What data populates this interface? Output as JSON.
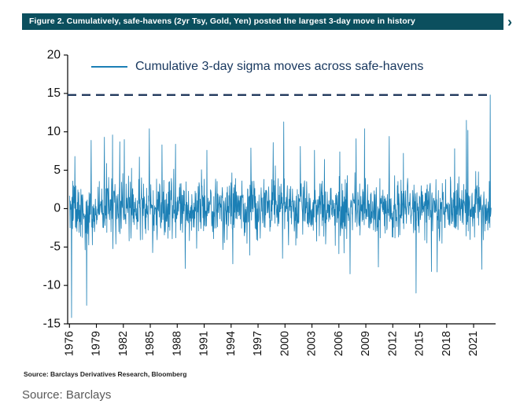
{
  "header": {
    "title": "Figure 2. Cumulatively, safe-havens (2yr Tsy, Gold, Yen) posted the largest 3-day move in history",
    "chevron": "›"
  },
  "colors": {
    "header_bg": "#0b4f5e",
    "header_text": "#ffffff",
    "series": "#1b7fb5",
    "dashed": "#223a5e",
    "legend_text": "#17375e",
    "axis": "#000000",
    "tick_text": "#111111",
    "source_caption": "#595959"
  },
  "chart_data": {
    "type": "line",
    "legend": "Cumulative 3-day sigma moves across safe-havens",
    "xlabel": "",
    "ylabel": "",
    "ylim": [
      -15,
      20
    ],
    "yticks": [
      -15,
      -10,
      -5,
      0,
      5,
      10,
      15,
      20
    ],
    "xticks": [
      1976,
      1979,
      1982,
      1985,
      1988,
      1991,
      1994,
      1997,
      2000,
      2003,
      2006,
      2009,
      2012,
      2015,
      2018,
      2021
    ],
    "x_range": [
      1975.8,
      2023.1
    ],
    "grid": false,
    "legend_position": "upper-left",
    "dashed_reference_line": {
      "y": 14.8,
      "meaning": "largest 3-day move in history"
    },
    "noise": {
      "seed": 11,
      "n_points": 1400,
      "std": 1.9,
      "heavy_tail_prob": 0.05,
      "heavy_tail_scale": 1.8,
      "clip": 8.5,
      "data_x": [
        1976.0,
        2022.95
      ]
    },
    "spikes": [
      [
        1976.25,
        -14.2
      ],
      [
        1976.6,
        6.8
      ],
      [
        1977.9,
        -12.6
      ],
      [
        1978.4,
        8.9
      ],
      [
        1979.9,
        9.3
      ],
      [
        1980.8,
        9.6
      ],
      [
        1981.6,
        8.7
      ],
      [
        1982.1,
        9.0
      ],
      [
        1984.9,
        10.4
      ],
      [
        1986.3,
        8.3
      ],
      [
        1987.8,
        8.4
      ],
      [
        1988.9,
        -7.8
      ],
      [
        1991.3,
        7.6
      ],
      [
        1994.2,
        -7.2
      ],
      [
        1996.2,
        7.9
      ],
      [
        1998.7,
        8.6
      ],
      [
        1999.85,
        11.3
      ],
      [
        2001.7,
        8.1
      ],
      [
        2003.3,
        7.6
      ],
      [
        2006.1,
        7.4
      ],
      [
        2007.9,
        9.1
      ],
      [
        2008.85,
        10.4
      ],
      [
        2010.4,
        -7.6
      ],
      [
        2011.6,
        9.4
      ],
      [
        2013.2,
        7.2
      ],
      [
        2014.6,
        -11.0
      ],
      [
        2016.3,
        -8.2
      ],
      [
        2018.9,
        7.8
      ],
      [
        2020.2,
        11.5
      ],
      [
        2020.35,
        10.2
      ],
      [
        2021.9,
        -7.9
      ],
      [
        2022.85,
        14.8
      ]
    ]
  },
  "footer": {
    "source_small": "Source: Barclays Derivatives Research, Bloomberg",
    "source_large": "Source: Barclays"
  }
}
